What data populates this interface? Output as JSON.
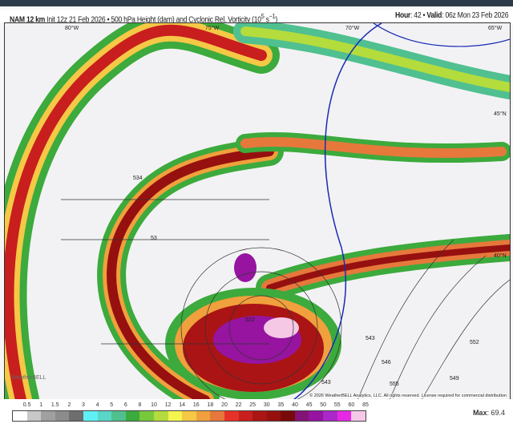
{
  "header": {
    "model": "NAM 12 km",
    "init": "Init 12z 21 Feb 2026",
    "product": "500 hPa Height (dam) and Cyclonic Rel. Vorticity (10",
    "unit_exp": "5",
    "unit_tail": " s",
    "unit_exp2": "−1",
    "unit_close": ")",
    "hour_label": "Hour",
    "hour": "42",
    "valid_label": "Valid",
    "valid": "06z Mon 23 Feb 2026"
  },
  "map": {
    "lon_labels": [
      "80°W",
      "75°W",
      "70°W",
      "65°W"
    ],
    "lat_labels": [
      "45°N",
      "40°N"
    ],
    "contour_labels": [
      "534",
      "53",
      "522",
      "543",
      "543",
      "546",
      "549",
      "555",
      "552"
    ],
    "copyright": "© 2026 WeatherBELL Analytics, LLC. All rights reserved. License required for commercial distribution",
    "logo": "WeatherBELL"
  },
  "colorbar": {
    "ticks": [
      "0.5",
      "1",
      "1.5",
      "2",
      "3",
      "4",
      "5",
      "6",
      "8",
      "10",
      "12",
      "14",
      "16",
      "18",
      "20",
      "22",
      "25",
      "30",
      "35",
      "40",
      "45",
      "50",
      "55",
      "60",
      "85"
    ],
    "colors": [
      "#ffffff",
      "#c8c8c8",
      "#a0a0a0",
      "#8c8c8c",
      "#6e6e6e",
      "#5ff0f5",
      "#5ad6c8",
      "#50c090",
      "#3caa3c",
      "#78c83c",
      "#b4dc3c",
      "#f5f550",
      "#f5c846",
      "#f0a03c",
      "#e6783c",
      "#e63228",
      "#c81e1e",
      "#aa1414",
      "#961010",
      "#780a0a",
      "#821478",
      "#9614a0",
      "#aa28c8",
      "#e628e6",
      "#f5c8e6"
    ],
    "max_label": "Max",
    "max_value": "69.4"
  }
}
